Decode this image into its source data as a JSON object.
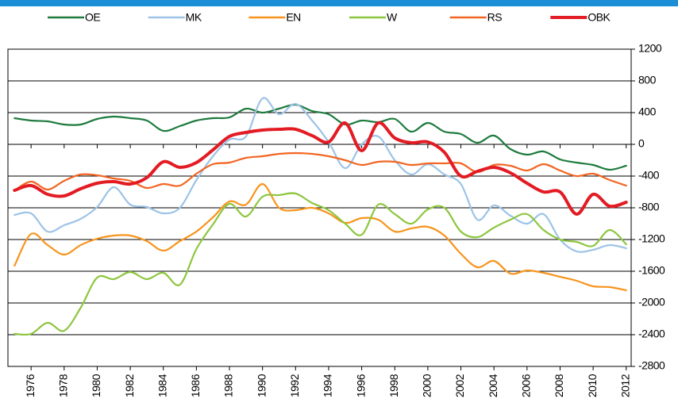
{
  "chart_data": {
    "type": "line",
    "x": [
      1975,
      1976,
      1977,
      1978,
      1979,
      1980,
      1981,
      1982,
      1983,
      1984,
      1985,
      1986,
      1987,
      1988,
      1989,
      1990,
      1991,
      1992,
      1993,
      1994,
      1995,
      1996,
      1997,
      1998,
      1999,
      2000,
      2001,
      2002,
      2003,
      2004,
      2005,
      2006,
      2007,
      2008,
      2009,
      2010,
      2011,
      2012
    ],
    "series": [
      {
        "name": "OE",
        "color": "#1e7b3e",
        "values": [
          330,
          300,
          290,
          250,
          250,
          320,
          350,
          330,
          300,
          170,
          230,
          300,
          330,
          340,
          450,
          400,
          450,
          500,
          420,
          380,
          250,
          300,
          280,
          320,
          160,
          270,
          160,
          130,
          20,
          110,
          -60,
          -130,
          -90,
          -190,
          -230,
          -260,
          -320,
          -270
        ]
      },
      {
        "name": "MK",
        "color": "#9dc3e6",
        "values": [
          -890,
          -870,
          -1100,
          -1020,
          -940,
          -790,
          -540,
          -760,
          -790,
          -870,
          -800,
          -450,
          -150,
          60,
          100,
          580,
          380,
          510,
          300,
          30,
          -300,
          0,
          100,
          -200,
          -380,
          -250,
          -380,
          -500,
          -950,
          -770,
          -900,
          -1000,
          -880,
          -1200,
          -1350,
          -1330,
          -1270,
          -1310
        ]
      },
      {
        "name": "EN",
        "color": "#f7941d",
        "values": [
          -1530,
          -1130,
          -1270,
          -1390,
          -1270,
          -1190,
          -1150,
          -1150,
          -1220,
          -1340,
          -1220,
          -1100,
          -920,
          -720,
          -760,
          -500,
          -800,
          -830,
          -800,
          -870,
          -990,
          -930,
          -950,
          -1100,
          -1060,
          -1040,
          -1150,
          -1380,
          -1550,
          -1470,
          -1630,
          -1590,
          -1620,
          -1670,
          -1720,
          -1790,
          -1800,
          -1840
        ]
      },
      {
        "name": "W",
        "color": "#8dc63f",
        "values": [
          -2390,
          -2390,
          -2250,
          -2350,
          -2060,
          -1680,
          -1700,
          -1610,
          -1700,
          -1620,
          -1770,
          -1320,
          -1010,
          -750,
          -910,
          -660,
          -640,
          -620,
          -740,
          -830,
          -1000,
          -1140,
          -760,
          -880,
          -1000,
          -820,
          -800,
          -1100,
          -1170,
          -1050,
          -950,
          -880,
          -1080,
          -1200,
          -1230,
          -1280,
          -1080,
          -1260
        ]
      },
      {
        "name": "RS",
        "color": "#f26522",
        "values": [
          -580,
          -470,
          -570,
          -460,
          -380,
          -390,
          -430,
          -460,
          -550,
          -500,
          -520,
          -370,
          -250,
          -230,
          -170,
          -150,
          -120,
          -110,
          -120,
          -150,
          -200,
          -260,
          -220,
          -220,
          -260,
          -240,
          -240,
          -240,
          -350,
          -260,
          -270,
          -330,
          -250,
          -330,
          -400,
          -370,
          -450,
          -520
        ]
      },
      {
        "name": "OBK",
        "color": "#e31b23",
        "width": 4,
        "values": [
          -580,
          -520,
          -630,
          -650,
          -560,
          -490,
          -470,
          -500,
          -420,
          -220,
          -290,
          -230,
          -70,
          100,
          150,
          180,
          190,
          190,
          110,
          30,
          270,
          -80,
          270,
          80,
          20,
          30,
          -100,
          -400,
          -340,
          -290,
          -360,
          -490,
          -600,
          -600,
          -880,
          -630,
          -780,
          -730
        ]
      }
    ],
    "xlim": [
      1974.6,
      2012.3
    ],
    "ylim": [
      -2800,
      1200
    ],
    "xticks": [
      1976,
      1978,
      1980,
      1982,
      1984,
      1986,
      1988,
      1990,
      1992,
      1994,
      1996,
      1998,
      2000,
      2002,
      2004,
      2006,
      2008,
      2010,
      2012
    ],
    "yticks": [
      -2800,
      -2400,
      -2000,
      -1600,
      -1200,
      -800,
      -400,
      0,
      400,
      800,
      1200
    ],
    "grid": true,
    "legend": "top"
  }
}
